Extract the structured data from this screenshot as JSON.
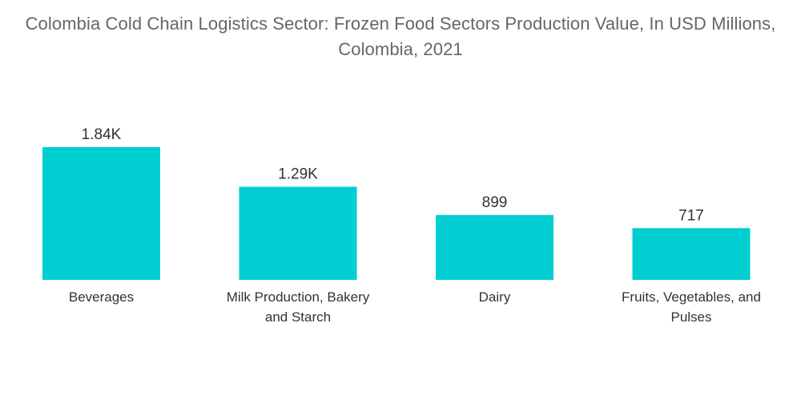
{
  "chart_data": {
    "type": "bar",
    "title": "Colombia Cold Chain Logistics Sector: Frozen Food Sectors Production Value, In USD Millions, Colombia, 2021",
    "categories": [
      [
        "Beverages"
      ],
      [
        "Milk Production, Bakery",
        "and Starch"
      ],
      [
        "Dairy"
      ],
      [
        "Fruits, Vegetables, and",
        "Pulses"
      ]
    ],
    "values": [
      1840,
      1290,
      899,
      717
    ],
    "value_labels": [
      "1.84K",
      "1.29K",
      "899",
      "717"
    ],
    "bar_color": "#00CED1",
    "grid": false,
    "legend": "none"
  }
}
